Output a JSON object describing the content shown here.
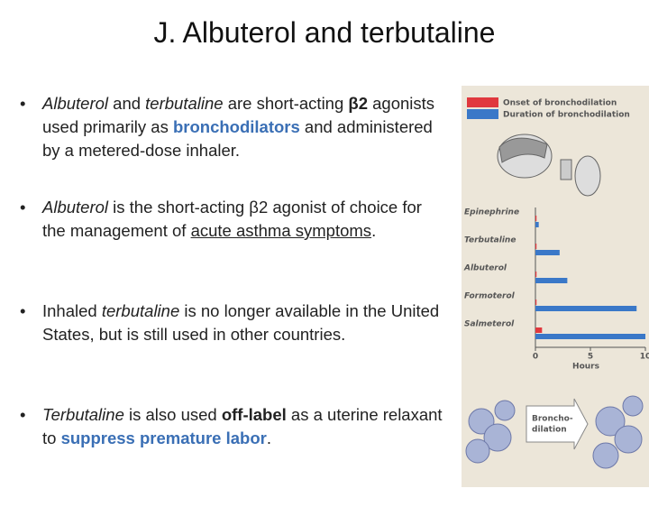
{
  "title": "J. Albuterol and terbutaline",
  "bullets": [
    {
      "runs": [
        {
          "text": "Albuterol",
          "style": [
            "italic"
          ]
        },
        {
          "text": "  and ",
          "style": []
        },
        {
          "text": "terbutaline",
          "style": [
            "italic"
          ]
        },
        {
          "text": "  are short-acting ",
          "style": []
        },
        {
          "text": "β2",
          "style": [
            "bold"
          ]
        },
        {
          "text": " agonists used primarily as ",
          "style": []
        },
        {
          "text": "bronchodilators",
          "style": [
            "bold",
            "blue"
          ]
        },
        {
          "text": " and administered  by a metered-dose inhaler.",
          "style": []
        }
      ]
    },
    {
      "runs": [
        {
          "text": "Albuterol",
          "style": [
            "italic"
          ]
        },
        {
          "text": " is the short-acting β2 agonist of choice for the management of ",
          "style": []
        },
        {
          "text": "acute asthma symptoms",
          "style": [
            "underline"
          ]
        },
        {
          "text": ".",
          "style": []
        }
      ]
    },
    {
      "runs": [
        {
          "text": "Inhaled ",
          "style": []
        },
        {
          "text": "terbutaline",
          "style": [
            "italic"
          ]
        },
        {
          "text": " is no longer available in the United States, but is still used in other countries.",
          "style": []
        }
      ]
    },
    {
      "runs": [
        {
          "text": "Terbutaline",
          "style": [
            "italic"
          ]
        },
        {
          "text": " is also used ",
          "style": []
        },
        {
          "text": "off-label",
          "style": [
            "bold"
          ]
        },
        {
          "text": " as a uterine relaxant to ",
          "style": []
        },
        {
          "text": "suppress premature labor",
          "style": [
            "bold",
            "blue"
          ]
        },
        {
          "text": ".",
          "style": []
        }
      ]
    }
  ],
  "chart_data": {
    "type": "bar",
    "orientation": "horizontal",
    "categories": [
      "Epinephrine",
      "Terbutaline",
      "Albuterol",
      "Formoterol",
      "Salmeterol"
    ],
    "series": [
      {
        "name": "Onset of bronchodilation",
        "color": "#e0383e",
        "values": [
          0.1,
          0.1,
          0.1,
          0.1,
          0.6
        ]
      },
      {
        "name": "Duration of bronchodilation",
        "color": "#3a78c8",
        "values": [
          0.3,
          2.2,
          2.9,
          9.2,
          10
        ]
      }
    ],
    "xlim": [
      0,
      10
    ],
    "xticks": [
      0,
      5,
      10
    ],
    "xlabel": "Hours",
    "annotation": [
      "Broncho-",
      "dilation"
    ]
  }
}
